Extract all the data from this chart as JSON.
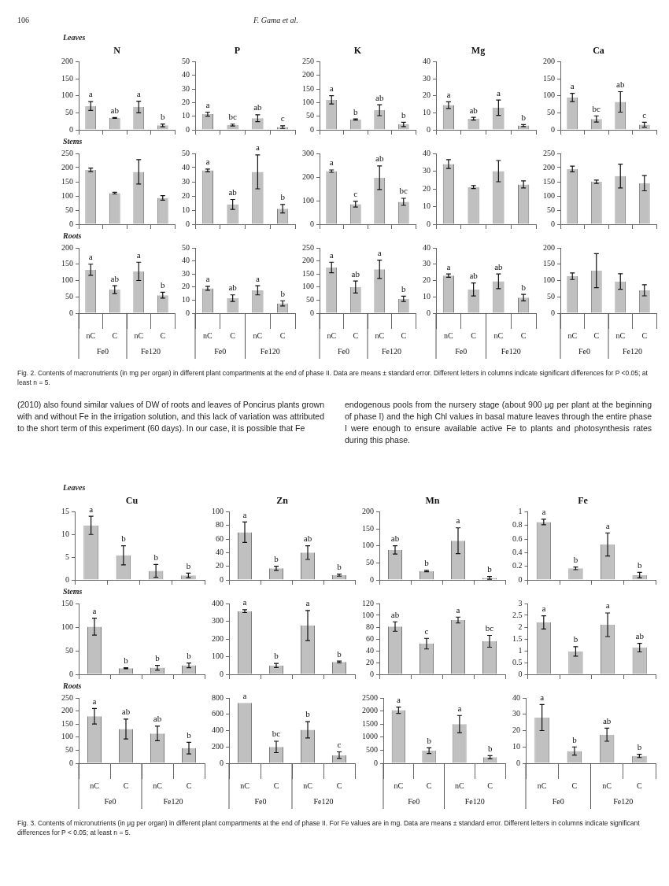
{
  "chart_data": [
    {
      "type": "bar",
      "title": "N",
      "subtitle": "Leaves",
      "categories": [
        null,
        null,
        null,
        null
      ],
      "values": [
        70,
        35,
        67,
        13
      ],
      "errors": [
        13,
        1,
        17,
        4
      ],
      "value_labels": [
        "a",
        "ab",
        "a",
        "b"
      ],
      "color": "#c0c0c0",
      "ylim": [
        0,
        200
      ],
      "yticks": [
        0,
        50,
        100,
        150,
        200
      ],
      "tick_labels": "y",
      "annotations": [
        "106",
        "F. Gama et al."
      ]
    },
    {
      "type": "bar",
      "title": "P",
      "categories": [
        null,
        null,
        null,
        null
      ],
      "values": [
        11.5,
        3.5,
        8.5,
        2
      ],
      "errors": [
        1.5,
        0.7,
        2.5,
        1
      ],
      "value_labels": [
        "a",
        "bc",
        "ab",
        "c"
      ],
      "color": "#c0c0c0",
      "ylim": [
        0,
        50
      ],
      "yticks": [
        0,
        10,
        20,
        30,
        40,
        50
      ],
      "tick_labels": "y"
    },
    {
      "type": "bar",
      "title": "K",
      "categories": [
        null,
        null,
        null,
        null
      ],
      "values": [
        110,
        38,
        72,
        20
      ],
      "errors": [
        15,
        2,
        20,
        8
      ],
      "value_labels": [
        "a",
        "b",
        "ab",
        "b"
      ],
      "color": "#c0c0c0",
      "ylim": [
        0,
        250
      ],
      "yticks": [
        0,
        50,
        100,
        150,
        200,
        250
      ],
      "tick_labels": "y"
    },
    {
      "type": "bar",
      "title": "Mg",
      "categories": [
        null,
        null,
        null,
        null
      ],
      "values": [
        14.5,
        6.5,
        13,
        2.5
      ],
      "errors": [
        2,
        0.8,
        4.5,
        0.6
      ],
      "value_labels": [
        "a",
        "ab",
        "a",
        "b"
      ],
      "color": "#c0c0c0",
      "ylim": [
        0,
        40
      ],
      "yticks": [
        0,
        10,
        20,
        30,
        40
      ],
      "tick_labels": "y"
    },
    {
      "type": "bar",
      "title": "Ca",
      "categories": [
        null,
        null,
        null,
        null
      ],
      "values": [
        95,
        32,
        82,
        15
      ],
      "errors": [
        12,
        9,
        30,
        7
      ],
      "value_labels": [
        "a",
        "bc",
        "ab",
        "c"
      ],
      "color": "#c0c0c0",
      "ylim": [
        0,
        200
      ],
      "yticks": [
        0,
        50,
        100,
        150,
        200
      ],
      "tick_labels": "y"
    },
    {
      "type": "bar",
      "subtitle": "Stems",
      "categories": [
        null,
        null,
        null,
        null
      ],
      "values": [
        192,
        110,
        185,
        93
      ],
      "errors": [
        6,
        3,
        43,
        8
      ],
      "color": "#c0c0c0",
      "ylim": [
        0,
        250
      ],
      "yticks": [
        0,
        50,
        100,
        150,
        200,
        250
      ],
      "tick_labels": "y"
    },
    {
      "type": "bar",
      "categories": [
        null,
        null,
        null,
        null
      ],
      "values": [
        38,
        14,
        37,
        11
      ],
      "errors": [
        1,
        3.5,
        12,
        3
      ],
      "value_labels": [
        "a",
        "ab",
        "a",
        "b"
      ],
      "color": "#c0c0c0",
      "ylim": [
        0,
        50
      ],
      "yticks": [
        0,
        10,
        20,
        30,
        40,
        50
      ],
      "tick_labels": "y"
    },
    {
      "type": "bar",
      "categories": [
        null,
        null,
        null,
        null
      ],
      "values": [
        225,
        85,
        197,
        95
      ],
      "errors": [
        5,
        12,
        50,
        15
      ],
      "value_labels": [
        "a",
        "c",
        "ab",
        "bc"
      ],
      "color": "#c0c0c0",
      "ylim": [
        0,
        300
      ],
      "yticks": [
        0,
        100,
        200,
        300
      ],
      "tick_labels": "y"
    },
    {
      "type": "bar",
      "categories": [
        null,
        null,
        null,
        null
      ],
      "values": [
        34,
        21,
        30,
        22.5
      ],
      "errors": [
        2.5,
        0.8,
        6,
        2
      ],
      "color": "#c0c0c0",
      "ylim": [
        0,
        40
      ],
      "yticks": [
        0,
        10,
        20,
        30,
        40
      ],
      "tick_labels": "y"
    },
    {
      "type": "bar",
      "categories": [
        null,
        null,
        null,
        null
      ],
      "values": [
        195,
        150,
        170,
        145
      ],
      "errors": [
        10,
        6,
        42,
        27
      ],
      "color": "#c0c0c0",
      "ylim": [
        0,
        250
      ],
      "yticks": [
        0,
        50,
        100,
        150,
        200,
        250
      ],
      "tick_labels": "y"
    },
    {
      "type": "bar",
      "subtitle": "Roots",
      "categories": [
        "nC",
        "C",
        "nC",
        "C"
      ],
      "values": [
        133,
        72,
        128,
        55
      ],
      "errors": [
        17,
        12,
        28,
        9
      ],
      "value_labels": [
        "a",
        "ab",
        "a",
        "b"
      ],
      "color": "#c0c0c0",
      "ylim": [
        0,
        200
      ],
      "yticks": [
        0,
        50,
        100,
        150,
        200
      ],
      "annotations": [
        "Fe0",
        "Fe120"
      ]
    },
    {
      "type": "bar",
      "categories": [
        "nC",
        "C",
        "nC",
        "C"
      ],
      "values": [
        19,
        11.5,
        17.5,
        7.5
      ],
      "errors": [
        1.5,
        2.5,
        3.5,
        2
      ],
      "value_labels": [
        "a",
        "ab",
        "a",
        "b"
      ],
      "color": "#c0c0c0",
      "ylim": [
        0,
        50
      ],
      "yticks": [
        0,
        10,
        20,
        30,
        40,
        50
      ],
      "annotations": [
        "Fe0",
        "Fe120"
      ]
    },
    {
      "type": "bar",
      "categories": [
        "nC",
        "C",
        "nC",
        "C"
      ],
      "values": [
        175,
        100,
        168,
        55
      ],
      "errors": [
        20,
        23,
        35,
        10
      ],
      "value_labels": [
        "a",
        "ab",
        "a",
        "b"
      ],
      "color": "#c0c0c0",
      "ylim": [
        0,
        250
      ],
      "yticks": [
        0,
        50,
        100,
        150,
        200,
        250
      ],
      "annotations": [
        "Fe0",
        "Fe120"
      ]
    },
    {
      "type": "bar",
      "categories": [
        "nC",
        "C",
        "nC",
        "C"
      ],
      "values": [
        23,
        14.5,
        19.5,
        9.5
      ],
      "errors": [
        1,
        4,
        4.5,
        2
      ],
      "value_labels": [
        "a",
        "ab",
        "ab",
        "b"
      ],
      "color": "#c0c0c0",
      "ylim": [
        0,
        40
      ],
      "yticks": [
        0,
        10,
        20,
        30,
        40
      ],
      "annotations": [
        "Fe0",
        "Fe120"
      ]
    },
    {
      "type": "bar",
      "categories": [
        "nC",
        "C",
        "nC",
        "C"
      ],
      "values": [
        113,
        130,
        97,
        70
      ],
      "errors": [
        10,
        52,
        24,
        17
      ],
      "color": "#c0c0c0",
      "ylim": [
        0,
        200
      ],
      "yticks": [
        0,
        50,
        100,
        150,
        200
      ],
      "annotations": [
        "Fe0",
        "Fe120",
        "Fig. 2. Contents of macronutrients (in mg per organ) in different plant compartments at the end of phase II. Data are means ± standard error. Different letters in columns indicate significant differences for P <0.05; at least n = 5.",
        "(2010) also found similar values of DW of roots and leaves of Poncirus plants grown with and without Fe in the irrigation solution, and this lack of variation was attributed to the short term of this experiment (60 days). In our case, it is possible that Fe",
        "endogenous pools from the nursery stage (about 900 μg per plant at the beginning of phase I) and the high Chl values in basal mature leaves through the entire phase I were enough to ensure available active Fe to plants and photosynthesis rates during this phase."
      ]
    },
    {
      "type": "bar",
      "title": "Cu",
      "subtitle": "Leaves",
      "categories": [
        null,
        null,
        null,
        null
      ],
      "values": [
        12,
        5.4,
        2,
        1
      ],
      "errors": [
        2,
        2.1,
        1.4,
        0.5
      ],
      "value_labels": [
        "a",
        "b",
        "b",
        "b"
      ],
      "color": "#c0c0c0",
      "ylim": [
        0,
        15
      ],
      "yticks": [
        0,
        5,
        10,
        15
      ],
      "tick_labels": "y"
    },
    {
      "type": "bar",
      "title": "Zn",
      "categories": [
        null,
        null,
        null,
        null
      ],
      "values": [
        70,
        17,
        40,
        7
      ],
      "errors": [
        15,
        3,
        10,
        1.5
      ],
      "value_labels": [
        "a",
        "b",
        "ab",
        "b"
      ],
      "color": "#c0c0c0",
      "ylim": [
        0,
        100
      ],
      "yticks": [
        0,
        20,
        40,
        60,
        80,
        100
      ],
      "tick_labels": "y"
    },
    {
      "type": "bar",
      "title": "Mn",
      "categories": [
        null,
        null,
        null,
        null
      ],
      "values": [
        88,
        26,
        115,
        6
      ],
      "errors": [
        12,
        2,
        38,
        4
      ],
      "value_labels": [
        "ab",
        "b",
        "a",
        "b"
      ],
      "color": "#c0c0c0",
      "ylim": [
        0,
        200
      ],
      "yticks": [
        0,
        50,
        100,
        150,
        200
      ],
      "tick_labels": "y"
    },
    {
      "type": "bar",
      "title": "Fe",
      "categories": [
        null,
        null,
        null,
        null
      ],
      "values": [
        0.85,
        0.17,
        0.52,
        0.07
      ],
      "errors": [
        0.04,
        0.02,
        0.17,
        0.04
      ],
      "value_labels": [
        "a",
        "b",
        "a",
        "b"
      ],
      "color": "#c0c0c0",
      "ylim": [
        0,
        1
      ],
      "yticks": [
        0,
        0.2,
        0.4,
        0.6,
        0.8,
        1
      ],
      "tick_labels": "y"
    },
    {
      "type": "bar",
      "subtitle": "Stems",
      "categories": [
        null,
        null,
        null,
        null
      ],
      "values": [
        101,
        13,
        14,
        19
      ],
      "errors": [
        18,
        1,
        5,
        5
      ],
      "value_labels": [
        "a",
        "b",
        "b",
        "b"
      ],
      "color": "#c0c0c0",
      "ylim": [
        0,
        150
      ],
      "yticks": [
        0,
        50,
        100,
        150
      ],
      "tick_labels": "y"
    },
    {
      "type": "bar",
      "categories": [
        null,
        null,
        null,
        null
      ],
      "values": [
        357,
        50,
        276,
        70
      ],
      "errors": [
        8,
        12,
        85,
        5
      ],
      "value_labels": [
        "a",
        "b",
        "a",
        "b"
      ],
      "color": "#c0c0c0",
      "ylim": [
        0,
        400
      ],
      "yticks": [
        0,
        100,
        200,
        300,
        400
      ],
      "tick_labels": "y"
    },
    {
      "type": "bar",
      "categories": [
        null,
        null,
        null,
        null
      ],
      "values": [
        81,
        52,
        92,
        56
      ],
      "errors": [
        8,
        9,
        5,
        10
      ],
      "value_labels": [
        "ab",
        "c",
        "a",
        "bc"
      ],
      "color": "#c0c0c0",
      "ylim": [
        0,
        120
      ],
      "yticks": [
        0,
        20,
        40,
        60,
        80,
        100,
        120
      ],
      "tick_labels": "y"
    },
    {
      "type": "bar",
      "categories": [
        null,
        null,
        null,
        null
      ],
      "values": [
        2.2,
        0.97,
        2.1,
        1.13
      ],
      "errors": [
        0.28,
        0.2,
        0.5,
        0.18
      ],
      "value_labels": [
        "a",
        "b",
        "a",
        "ab"
      ],
      "color": "#c0c0c0",
      "ylim": [
        0,
        3
      ],
      "yticks": [
        0,
        0.5,
        1,
        1.5,
        2,
        2.5,
        3
      ],
      "tick_labels": "y"
    },
    {
      "type": "bar",
      "subtitle": "Roots",
      "categories": [
        "nC",
        "C",
        "nC",
        "C"
      ],
      "values": [
        180,
        131,
        114,
        58
      ],
      "errors": [
        30,
        38,
        28,
        22
      ],
      "value_labels": [
        "a",
        "ab",
        "ab",
        "b"
      ],
      "color": "#c0c0c0",
      "ylim": [
        0,
        250
      ],
      "yticks": [
        0,
        50,
        100,
        150,
        200,
        250
      ],
      "annotations": [
        "Fe0",
        "Fe120"
      ]
    },
    {
      "type": "bar",
      "categories": [
        "nC",
        "C",
        "nC",
        "C"
      ],
      "values": [
        740,
        200,
        410,
        100
      ],
      "errors": [
        null,
        70,
        100,
        40
      ],
      "value_labels": [
        "a",
        "bc",
        "b",
        "c"
      ],
      "color": "#c0c0c0",
      "ylim": [
        0,
        800
      ],
      "yticks": [
        0,
        200,
        400,
        600,
        800
      ],
      "annotations": [
        "Fe0",
        "Fe120"
      ]
    },
    {
      "type": "bar",
      "categories": [
        "nC",
        "C",
        "nC",
        "C"
      ],
      "values": [
        2030,
        480,
        1500,
        230
      ],
      "errors": [
        120,
        110,
        330,
        60
      ],
      "value_labels": [
        "a",
        "b",
        "a",
        "b"
      ],
      "color": "#c0c0c0",
      "ylim": [
        0,
        2500
      ],
      "yticks": [
        0,
        500,
        1000,
        1500,
        2000,
        2500
      ],
      "annotations": [
        "Fe0",
        "Fe120"
      ]
    },
    {
      "type": "bar",
      "categories": [
        "nC",
        "C",
        "nC",
        "C"
      ],
      "values": [
        28,
        7.5,
        17.5,
        4.5
      ],
      "errors": [
        8,
        2.5,
        4,
        1
      ],
      "value_labels": [
        "a",
        "b",
        "ab",
        "b"
      ],
      "color": "#c0c0c0",
      "ylim": [
        0,
        40
      ],
      "yticks": [
        0,
        10,
        20,
        30,
        40
      ],
      "annotations": [
        "Fe0",
        "Fe120",
        "Fig. 3. Contents of micronutrients (in μg per organ) in different plant compartments at the end of phase II. For Fe values are in mg. Data are means ± standard error. Different letters in columns indicate significant differences for P < 0.05; at least n = 5."
      ]
    }
  ]
}
